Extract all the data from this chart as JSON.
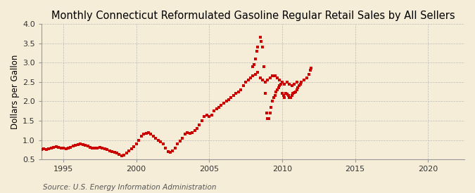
{
  "title": "Monthly Connecticut Reformulated Gasoline Regular Retail Sales by All Sellers",
  "ylabel": "Dollars per Gallon",
  "source": "Source: U.S. Energy Information Administration",
  "xlim": [
    1993.5,
    2022.5
  ],
  "ylim": [
    0.5,
    4.0
  ],
  "yticks": [
    0.5,
    1.0,
    1.5,
    2.0,
    2.5,
    3.0,
    3.5,
    4.0
  ],
  "xticks": [
    1995,
    2000,
    2005,
    2010,
    2015,
    2020
  ],
  "dot_color": "#cc0000",
  "bg_color": "#f5edd8",
  "plot_bg_color": "#f5edd8",
  "grid_color": "#bbbbbb",
  "title_fontsize": 10.5,
  "label_fontsize": 8.5,
  "tick_fontsize": 8,
  "source_fontsize": 7.5,
  "data": [
    [
      1993.5,
      0.75
    ],
    [
      1993.67,
      0.77
    ],
    [
      1993.83,
      0.76
    ],
    [
      1994.0,
      0.78
    ],
    [
      1994.17,
      0.79
    ],
    [
      1994.33,
      0.81
    ],
    [
      1994.5,
      0.83
    ],
    [
      1994.67,
      0.82
    ],
    [
      1994.83,
      0.8
    ],
    [
      1995.0,
      0.79
    ],
    [
      1995.17,
      0.78
    ],
    [
      1995.33,
      0.8
    ],
    [
      1995.5,
      0.82
    ],
    [
      1995.67,
      0.85
    ],
    [
      1995.83,
      0.87
    ],
    [
      1996.0,
      0.88
    ],
    [
      1996.17,
      0.9
    ],
    [
      1996.33,
      0.89
    ],
    [
      1996.5,
      0.86
    ],
    [
      1996.67,
      0.84
    ],
    [
      1996.83,
      0.82
    ],
    [
      1997.0,
      0.8
    ],
    [
      1997.17,
      0.79
    ],
    [
      1997.33,
      0.8
    ],
    [
      1997.5,
      0.82
    ],
    [
      1997.67,
      0.8
    ],
    [
      1997.83,
      0.78
    ],
    [
      1998.0,
      0.75
    ],
    [
      1998.17,
      0.72
    ],
    [
      1998.33,
      0.7
    ],
    [
      1998.5,
      0.68
    ],
    [
      1998.67,
      0.66
    ],
    [
      1998.83,
      0.63
    ],
    [
      1999.0,
      0.6
    ],
    [
      1999.17,
      0.62
    ],
    [
      1999.33,
      0.66
    ],
    [
      1999.5,
      0.72
    ],
    [
      1999.67,
      0.78
    ],
    [
      1999.83,
      0.83
    ],
    [
      2000.0,
      0.9
    ],
    [
      2000.17,
      1.0
    ],
    [
      2000.33,
      1.1
    ],
    [
      2000.5,
      1.15
    ],
    [
      2000.67,
      1.18
    ],
    [
      2000.83,
      1.2
    ],
    [
      2001.0,
      1.15
    ],
    [
      2001.17,
      1.1
    ],
    [
      2001.33,
      1.05
    ],
    [
      2001.5,
      1.0
    ],
    [
      2001.67,
      0.95
    ],
    [
      2001.83,
      0.9
    ],
    [
      2002.0,
      0.8
    ],
    [
      2002.17,
      0.7
    ],
    [
      2002.33,
      0.68
    ],
    [
      2002.5,
      0.72
    ],
    [
      2002.67,
      0.8
    ],
    [
      2002.83,
      0.9
    ],
    [
      2003.0,
      0.98
    ],
    [
      2003.17,
      1.05
    ],
    [
      2003.33,
      1.15
    ],
    [
      2003.5,
      1.2
    ],
    [
      2003.67,
      1.18
    ],
    [
      2003.83,
      1.2
    ],
    [
      2004.0,
      1.25
    ],
    [
      2004.17,
      1.3
    ],
    [
      2004.33,
      1.4
    ],
    [
      2004.5,
      1.5
    ],
    [
      2004.67,
      1.6
    ],
    [
      2004.83,
      1.65
    ],
    [
      2005.0,
      1.6
    ],
    [
      2005.17,
      1.65
    ],
    [
      2005.33,
      1.75
    ],
    [
      2005.5,
      1.8
    ],
    [
      2005.67,
      1.85
    ],
    [
      2005.83,
      1.9
    ],
    [
      2006.0,
      1.95
    ],
    [
      2006.17,
      2.0
    ],
    [
      2006.33,
      2.05
    ],
    [
      2006.5,
      2.1
    ],
    [
      2006.67,
      2.15
    ],
    [
      2006.83,
      2.2
    ],
    [
      2007.0,
      2.25
    ],
    [
      2007.17,
      2.3
    ],
    [
      2007.33,
      2.4
    ],
    [
      2007.5,
      2.5
    ],
    [
      2007.67,
      2.55
    ],
    [
      2007.83,
      2.6
    ],
    [
      2008.0,
      2.65
    ],
    [
      2008.17,
      2.7
    ],
    [
      2008.33,
      2.75
    ],
    [
      2008.5,
      2.6
    ],
    [
      2008.67,
      2.55
    ],
    [
      2008.83,
      2.5
    ],
    [
      2009.0,
      2.55
    ],
    [
      2009.17,
      2.6
    ],
    [
      2009.33,
      2.65
    ],
    [
      2009.5,
      2.65
    ],
    [
      2009.67,
      2.6
    ],
    [
      2009.83,
      2.55
    ],
    [
      2010.0,
      2.5
    ],
    [
      2010.17,
      2.45
    ],
    [
      2010.33,
      2.5
    ],
    [
      2010.5,
      2.45
    ],
    [
      2010.67,
      2.4
    ],
    [
      2010.83,
      2.45
    ],
    [
      2011.0,
      2.5
    ],
    [
      2008.0,
      2.9
    ],
    [
      2008.08,
      2.95
    ],
    [
      2008.17,
      3.1
    ],
    [
      2008.25,
      3.3
    ],
    [
      2008.33,
      3.4
    ],
    [
      2008.5,
      3.65
    ],
    [
      2008.58,
      3.55
    ],
    [
      2008.67,
      3.4
    ],
    [
      2008.75,
      2.9
    ],
    [
      2008.83,
      2.2
    ],
    [
      2008.92,
      1.7
    ],
    [
      2009.0,
      1.55
    ],
    [
      2009.08,
      1.55
    ],
    [
      2009.17,
      1.7
    ],
    [
      2009.25,
      1.85
    ],
    [
      2009.33,
      2.0
    ],
    [
      2009.42,
      2.1
    ],
    [
      2009.5,
      2.15
    ],
    [
      2009.58,
      2.25
    ],
    [
      2009.67,
      2.3
    ],
    [
      2009.75,
      2.35
    ],
    [
      2009.83,
      2.4
    ],
    [
      2009.92,
      2.45
    ],
    [
      2010.0,
      2.2
    ],
    [
      2010.08,
      2.15
    ],
    [
      2010.17,
      2.1
    ],
    [
      2010.25,
      2.2
    ],
    [
      2010.33,
      2.18
    ],
    [
      2010.42,
      2.15
    ],
    [
      2010.5,
      2.1
    ],
    [
      2010.58,
      2.1
    ],
    [
      2010.67,
      2.15
    ],
    [
      2010.75,
      2.2
    ],
    [
      2010.83,
      2.22
    ],
    [
      2010.92,
      2.25
    ],
    [
      2011.0,
      2.3
    ],
    [
      2011.08,
      2.35
    ],
    [
      2011.17,
      2.4
    ],
    [
      2011.25,
      2.45
    ],
    [
      2011.33,
      2.5
    ],
    [
      2011.5,
      2.55
    ],
    [
      2011.67,
      2.6
    ],
    [
      2011.83,
      2.7
    ],
    [
      2011.92,
      2.8
    ],
    [
      2012.0,
      2.85
    ]
  ]
}
